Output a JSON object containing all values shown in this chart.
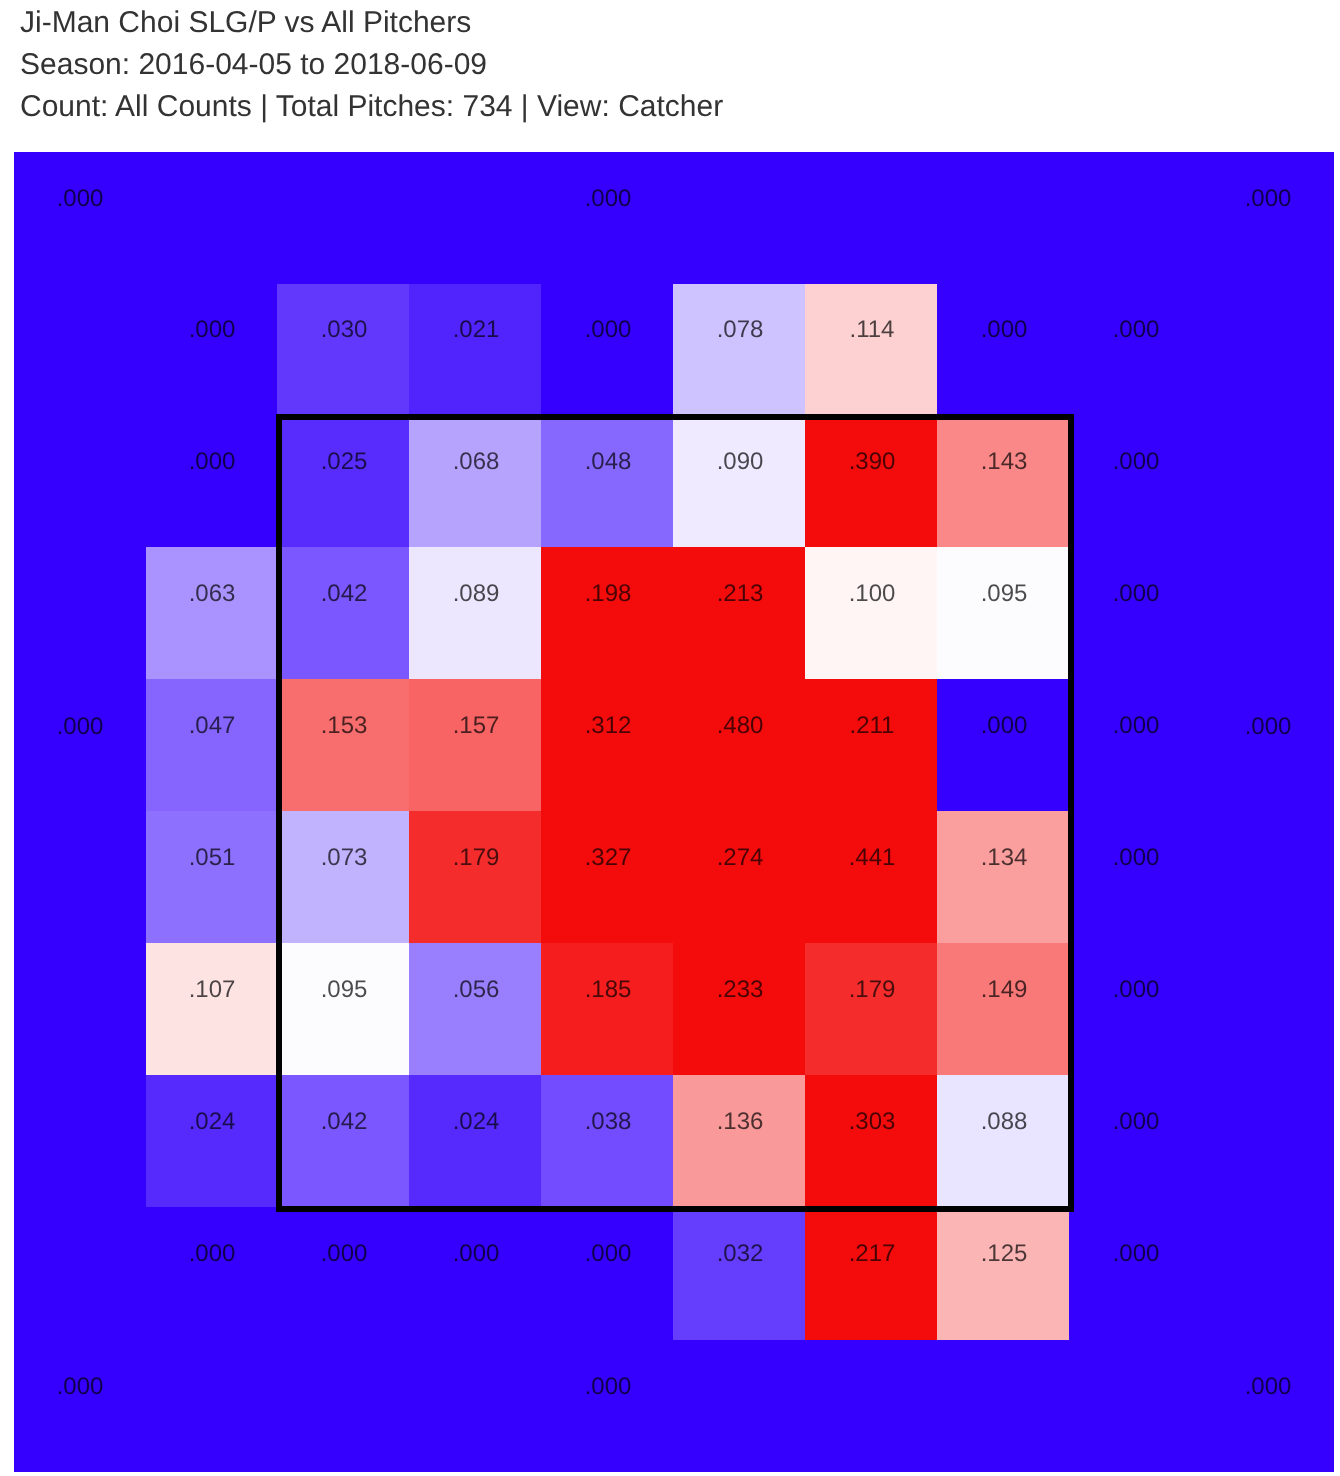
{
  "chart_data": {
    "type": "heatmap",
    "title": "Ji-Man Choi SLG/P vs All Pitchers",
    "subtitle": "Season: 2016-04-05 to 2018-06-09\nCount: All Counts | Total Pitches: 734 | View: Catcher",
    "categories": [
      null,
      null,
      null,
      null,
      null,
      null,
      null,
      null
    ],
    "y_categories": [
      null,
      null,
      null,
      null,
      null,
      null,
      null,
      null
    ],
    "cells": [
      [
        0,
        0.03,
        0.021,
        0,
        0.078,
        0.114,
        0,
        0
      ],
      [
        0,
        0.025,
        0.068,
        0.048,
        0.09,
        0.39,
        0.143,
        0
      ],
      [
        0.063,
        0.042,
        0.089,
        0.198,
        0.213,
        0.1,
        0.095,
        0
      ],
      [
        0.047,
        0.153,
        0.157,
        0.312,
        0.48,
        0.211,
        0,
        0
      ],
      [
        0.051,
        0.073,
        0.179,
        0.327,
        0.274,
        0.441,
        0.134,
        0
      ],
      [
        0.107,
        0.095,
        0.056,
        0.185,
        0.233,
        0.179,
        0.149,
        0
      ],
      [
        0.024,
        0.042,
        0.024,
        0.038,
        0.136,
        0.303,
        0.088,
        0
      ],
      [
        0,
        0,
        0,
        0,
        0.032,
        0.217,
        0.125,
        0
      ]
    ],
    "cell_labels": [
      [
        ".000",
        ".030",
        ".021",
        ".000",
        ".078",
        ".114",
        ".000",
        ".000"
      ],
      [
        ".000",
        ".025",
        ".068",
        ".048",
        ".090",
        ".390",
        ".143",
        ".000"
      ],
      [
        ".063",
        ".042",
        ".089",
        ".198",
        ".213",
        ".100",
        ".095",
        ".000"
      ],
      [
        ".047",
        ".153",
        ".157",
        ".312",
        ".480",
        ".211",
        ".000",
        ".000"
      ],
      [
        ".051",
        ".073",
        ".179",
        ".327",
        ".274",
        ".441",
        ".134",
        ".000"
      ],
      [
        ".107",
        ".095",
        ".056",
        ".185",
        ".233",
        ".179",
        ".149",
        ".000"
      ],
      [
        ".024",
        ".042",
        ".024",
        ".038",
        ".136",
        ".303",
        ".088",
        ".000"
      ],
      [
        ".000",
        ".000",
        ".000",
        ".000",
        ".032",
        ".217",
        ".125",
        ".000"
      ]
    ],
    "annotations": [
      ".000",
      ".000",
      ".000",
      ".000",
      ".000",
      ".000",
      ".000",
      ".000"
    ]
  }
}
